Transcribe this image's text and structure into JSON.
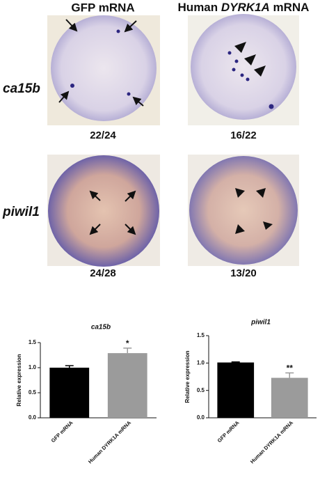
{
  "header": {
    "left": "GFP mRNA",
    "right": [
      "Human ",
      "DYRK1A",
      " mRNA"
    ]
  },
  "rows": [
    {
      "label": "ca15b",
      "left": "22/24",
      "right": "16/22"
    },
    {
      "label": "piwil1",
      "left": "24/28",
      "right": "13/20"
    }
  ],
  "chart_data": [
    {
      "type": "bar",
      "title": "ca15b",
      "y_label": "Relative expression",
      "categories": [
        "GFP mRNA",
        "Human DYRK1A mRNA"
      ],
      "values": [
        1.0,
        1.29
      ],
      "errors": [
        0.04,
        0.1
      ],
      "significance": [
        null,
        "*"
      ],
      "colors": [
        "#000000",
        "#9b9b9b"
      ],
      "ylim": [
        0,
        1.5
      ],
      "yticks": [
        {
          "value": 0,
          "label": "0.0"
        },
        0.5,
        {
          "value": 1,
          "label": "1.0"
        },
        1.5
      ]
    },
    {
      "type": "bar",
      "title": "piwil1",
      "y_label": "Relative expression",
      "categories": [
        "GFP mRNA",
        "Human DYRK1A mRNA"
      ],
      "values": [
        1.01,
        0.73
      ],
      "errors": [
        0.01,
        0.09
      ],
      "significance": [
        null,
        "**"
      ],
      "colors": [
        "#000000",
        "#9b9b9b"
      ],
      "ylim": [
        0,
        1.5
      ],
      "yticks": [
        {
          "value": 0,
          "label": "0.0"
        },
        0.5,
        {
          "value": 1,
          "label": "1.0"
        },
        1.5
      ]
    }
  ]
}
